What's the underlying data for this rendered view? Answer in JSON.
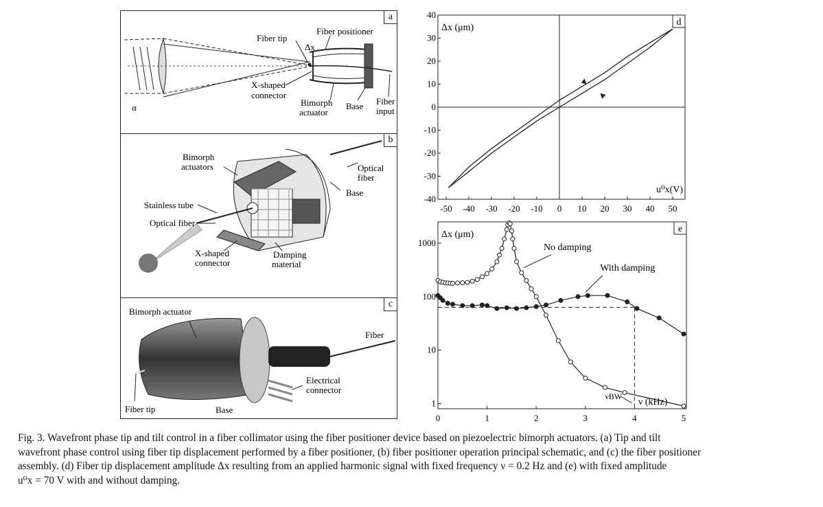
{
  "panel_a": {
    "label": "a",
    "fiber_tip": "Fiber tip",
    "fiber_positioner": "Fiber positioner",
    "delta_x": "Δx",
    "x_shaped_connector": [
      "X-shaped",
      "connector"
    ],
    "bimorph_actuator": [
      "Bimorph",
      "actuator"
    ],
    "base": "Base",
    "fiber_input": [
      "Fiber",
      "input"
    ],
    "alpha": "α"
  },
  "panel_b": {
    "label": "b",
    "bimorph_actuators": [
      "Bimorph",
      "actuators"
    ],
    "optical_fiber_right": [
      "Optical",
      "fiber"
    ],
    "base": "Base",
    "stainless_tube": "Stainless tube",
    "optical_fiber_left": "Optical fiber",
    "x_shaped_connector": [
      "X-shaped",
      "connector"
    ],
    "damping_material": [
      "Damping",
      "material"
    ]
  },
  "panel_c": {
    "label": "c",
    "bimorph_actuator": "Bimorph actuator",
    "fiber": "Fiber",
    "electrical_connector": [
      "Electrical",
      "connector"
    ],
    "fiber_tip": "Fiber tip",
    "base": "Base"
  },
  "chart_data": [
    {
      "type": "line",
      "panel_label": "d",
      "ylabel": "Δx (μm)",
      "xlabel": "u⁰x(V)",
      "xlim": [
        -50,
        50
      ],
      "ylim": [
        -40,
        40
      ],
      "x_ticks": [
        "-50",
        "-40",
        "-30",
        "-20",
        "-10",
        "0",
        "10",
        "20",
        "30",
        "40",
        "50"
      ],
      "y_ticks": [
        "40",
        "30",
        "20",
        "10",
        "0",
        "-10",
        "-20",
        "-30",
        "-40"
      ],
      "series": [
        {
          "x": [
            -49,
            -40,
            -30,
            -20,
            -10,
            0,
            10,
            20,
            30,
            40,
            50
          ],
          "y": [
            -35,
            -28,
            -20,
            -13,
            -6,
            0,
            6,
            12,
            19,
            26,
            34
          ]
        },
        {
          "x": [
            50,
            40,
            30,
            20,
            10,
            0,
            -10,
            -20,
            -30,
            -40,
            -49
          ],
          "y": [
            34,
            28,
            22,
            15,
            9,
            3,
            -4,
            -11,
            -18,
            -26,
            -35
          ]
        }
      ]
    },
    {
      "type": "scatter",
      "panel_label": "e",
      "ylabel": "Δx (μm)",
      "xlabel": "ν (kHz)",
      "yscale": "log",
      "xlim": [
        0,
        5
      ],
      "ylim": [
        0.8,
        2500
      ],
      "x_ticks": [
        "0",
        "1",
        "2",
        "3",
        "4",
        "5"
      ],
      "y_ticks": [
        "1000",
        "100",
        "10",
        "1"
      ],
      "annotations": [
        "No damping",
        "With damping",
        "νBW"
      ],
      "reference_level": 63,
      "reference_x": 4,
      "series": [
        {
          "name": "No damping",
          "marker": "open",
          "x": [
            0,
            0.05,
            0.1,
            0.15,
            0.2,
            0.25,
            0.3,
            0.4,
            0.5,
            0.6,
            0.7,
            0.8,
            0.9,
            1.0,
            1.1,
            1.2,
            1.25,
            1.3,
            1.35,
            1.4,
            1.42,
            1.45,
            1.47,
            1.5,
            1.52,
            1.55,
            1.6,
            1.7,
            1.8,
            1.9,
            2.0,
            2.2,
            2.45,
            2.7,
            3.0,
            3.4,
            3.8,
            5.0
          ],
          "y": [
            200,
            190,
            185,
            180,
            180,
            178,
            178,
            180,
            182,
            185,
            195,
            210,
            235,
            270,
            330,
            450,
            600,
            800,
            1200,
            1800,
            2200,
            2400,
            2300,
            1700,
            1200,
            800,
            450,
            280,
            200,
            140,
            100,
            45,
            15,
            6,
            3,
            2,
            1.6,
            0.9
          ]
        },
        {
          "name": "With damping",
          "marker": "filled",
          "x": [
            0,
            0.05,
            0.1,
            0.2,
            0.3,
            0.5,
            0.7,
            0.9,
            1.0,
            1.2,
            1.4,
            1.6,
            1.8,
            2.0,
            2.2,
            2.5,
            2.85,
            3.05,
            3.45,
            3.85,
            4.05,
            4.5,
            5.0
          ],
          "y": [
            105,
            95,
            85,
            75,
            72,
            68,
            68,
            70,
            68,
            60,
            62,
            60,
            62,
            65,
            70,
            85,
            100,
            105,
            105,
            80,
            60,
            40,
            20
          ]
        }
      ]
    }
  ],
  "caption": {
    "line1": "Fig. 3.   Wavefront phase tip and tilt control in a fiber collimator using the fiber positioner device based on piezoelectric bimorph actuators. (a) Tip and tilt",
    "line2": "wavefront phase control using fiber tip displacement performed by a fiber positioner, (b) fiber positioner operation principal schematic, and (c) the fiber positioner",
    "line3": "assembly. (d) Fiber tip displacement amplitude Δx resulting from an applied harmonic signal with fixed frequency ν = 0.2 Hz and (e) with fixed amplitude",
    "line4": "u⁰x = 70 V with and without damping."
  }
}
